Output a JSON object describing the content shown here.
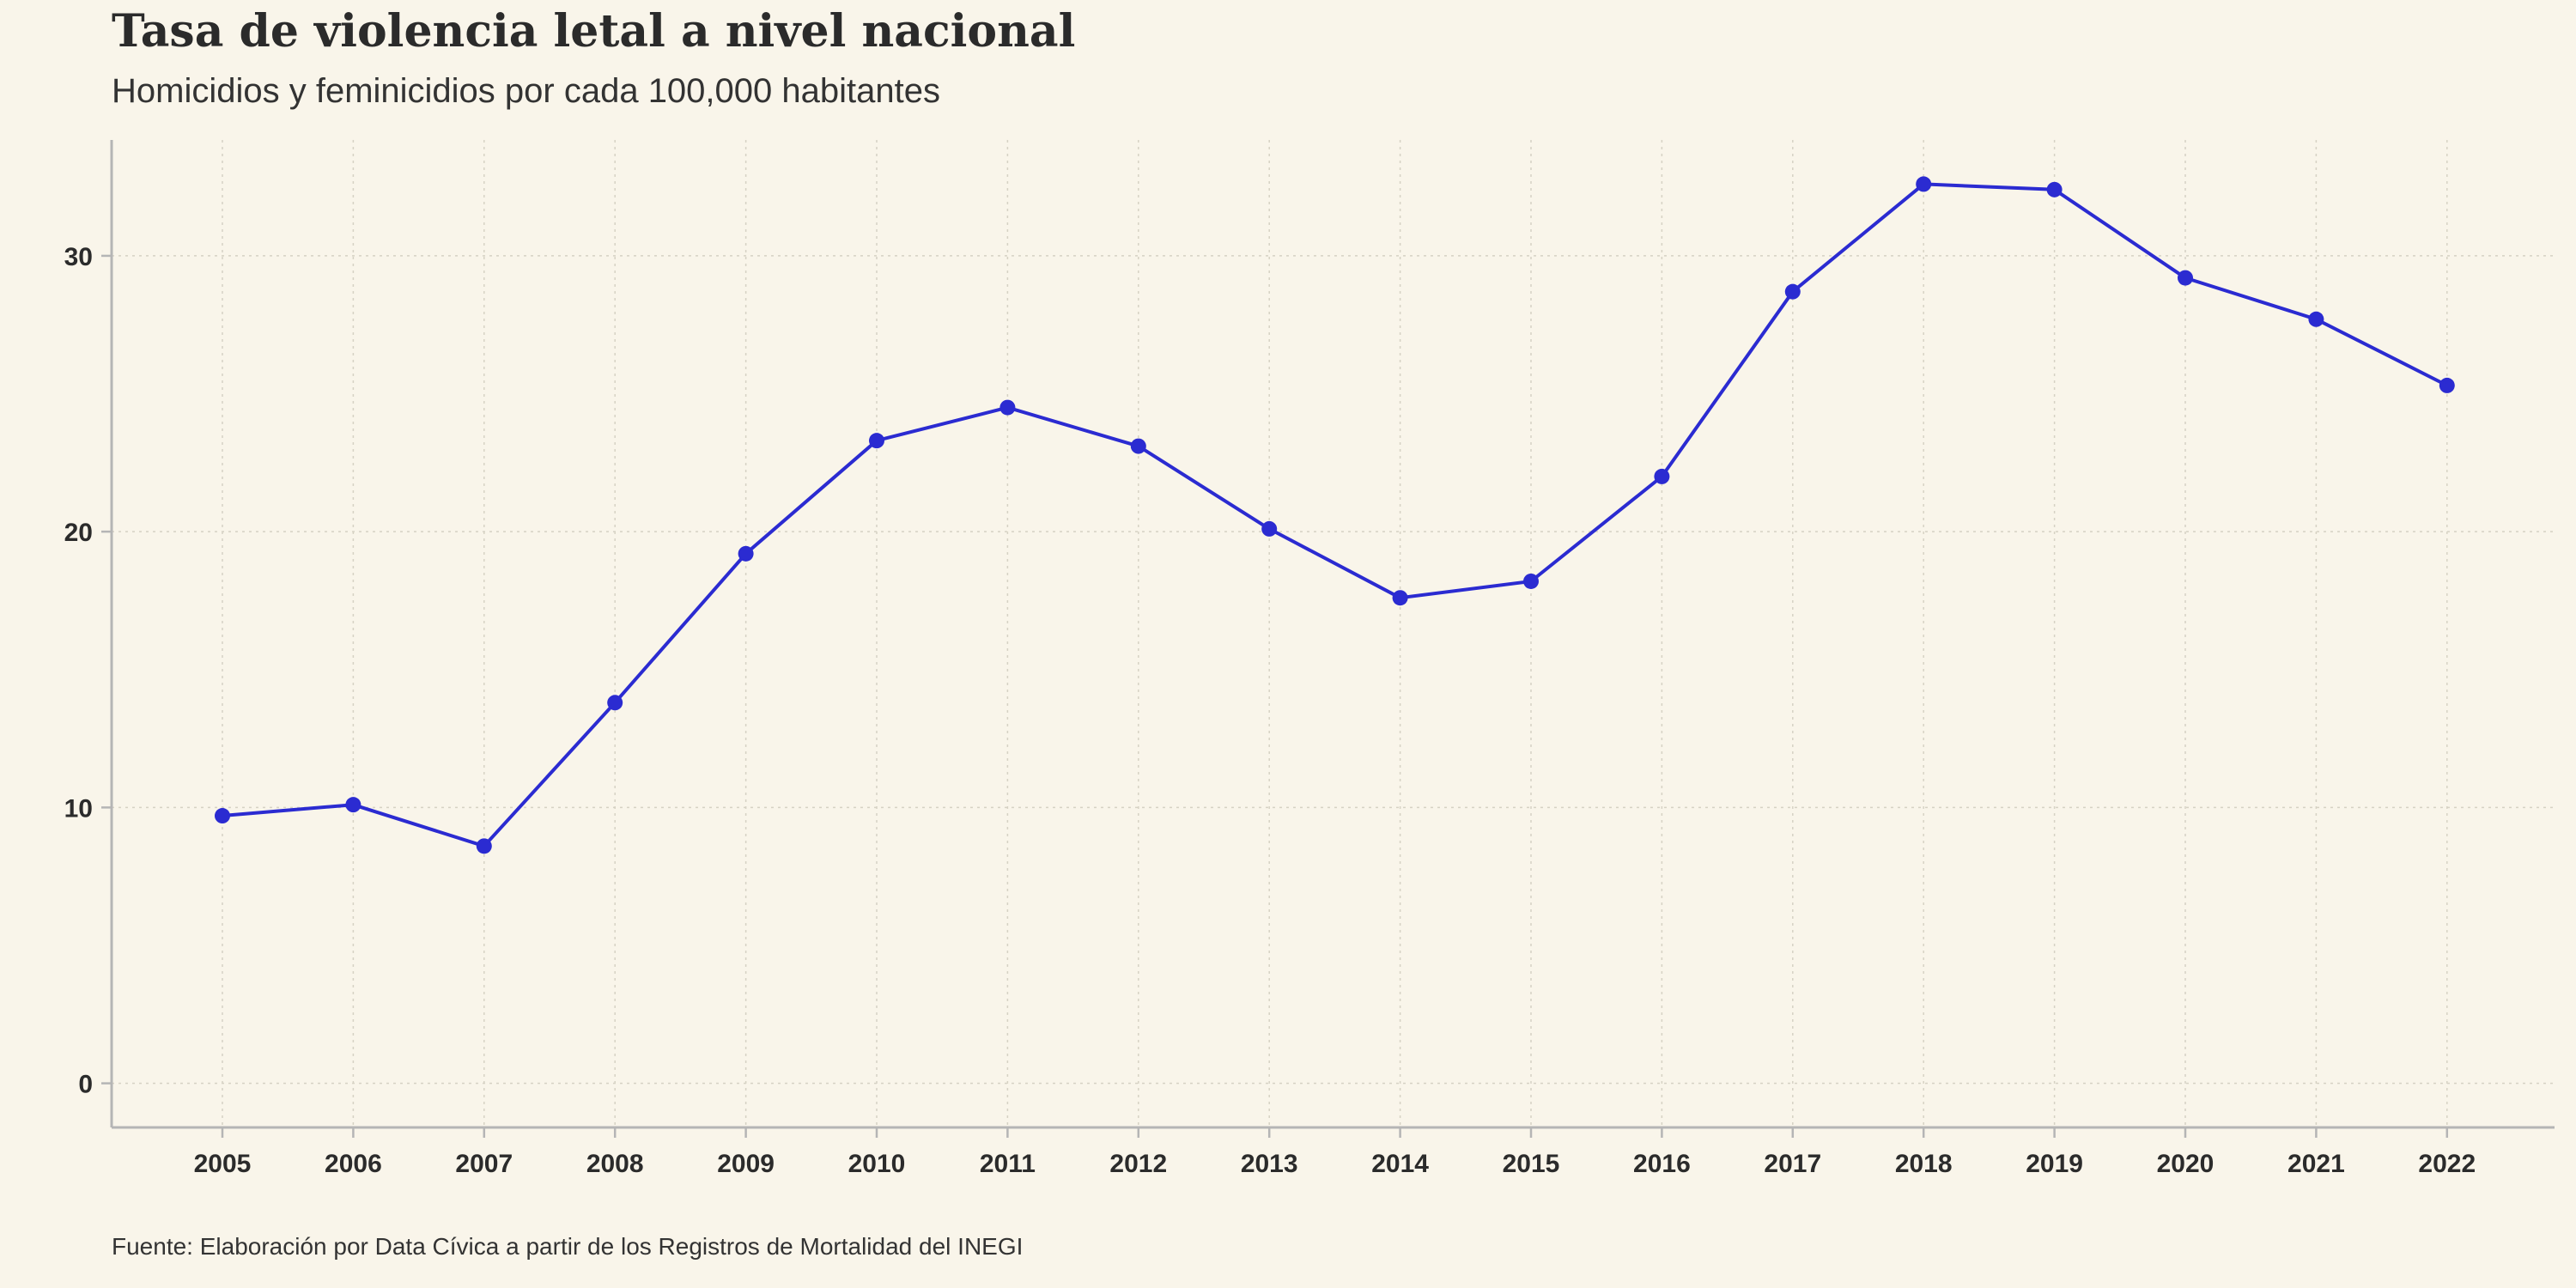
{
  "chart_data": {
    "type": "line",
    "title": "Tasa de violencia letal a nivel nacional",
    "subtitle": "Homicidios y feminicidios por cada 100,000 habitantes",
    "caption": "Fuente: Elaboración por Data Cívica a partir de los Registros de Mortalidad del INEGI",
    "xlabel": "",
    "ylabel": "",
    "x": [
      2005,
      2006,
      2007,
      2008,
      2009,
      2010,
      2011,
      2012,
      2013,
      2014,
      2015,
      2016,
      2017,
      2018,
      2019,
      2020,
      2021,
      2022
    ],
    "series": [
      {
        "values": [
          9.7,
          10.1,
          8.6,
          13.8,
          19.2,
          23.3,
          24.5,
          23.1,
          20.1,
          17.6,
          18.2,
          22.0,
          28.7,
          32.6,
          32.4,
          29.2,
          27.7,
          25.3
        ]
      }
    ],
    "yticks": [
      0,
      10,
      20,
      30
    ],
    "ylim": [
      -1.6,
      34.2
    ],
    "grid": true,
    "legend": "none",
    "colors": {
      "line": "#2b2bd1",
      "grid": "#d6d2c4",
      "axis": "#b5b5b5",
      "background": "#f9f5ea"
    }
  }
}
